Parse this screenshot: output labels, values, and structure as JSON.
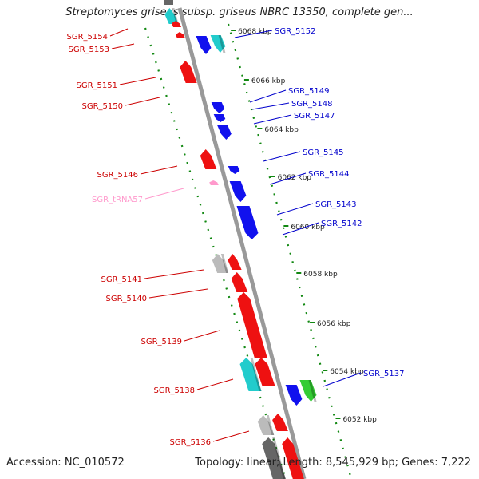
{
  "header": {
    "title": "Streptomyces griseus subsp. griseus NBRC 13350, complete gen..."
  },
  "footer": {
    "accession": "Accession: NC_010572",
    "topology": "Topology: linear; Length: 8,545,929 bp; Genes: 7,222"
  },
  "colors": {
    "forward_gene": "#ee1111",
    "reverse_gene": "#1111ee",
    "pseudo_teal": "#22cccc",
    "grey_gene": "#bbbbbb",
    "dark_gene": "#666666",
    "green_gene": "#33cc33",
    "trna": "#ff99cc",
    "scale": "#118811",
    "left_label": "#cc0000",
    "right_label": "#0000cc"
  },
  "scale_labels": [
    "6068 kbp",
    "6066 kbp",
    "6064 kbp",
    "6062 kbp",
    "6060 kbp",
    "6058 kbp",
    "6056 kbp",
    "6054 kbp",
    "6052 kbp"
  ],
  "left_labels": [
    {
      "text": "SGR_5154",
      "kind": "gene"
    },
    {
      "text": "SGR_5153",
      "kind": "gene"
    },
    {
      "text": "SGR_5151",
      "kind": "gene"
    },
    {
      "text": "SGR_5150",
      "kind": "gene"
    },
    {
      "text": "SGR_5146",
      "kind": "gene"
    },
    {
      "text": "SGR_tRNA57",
      "kind": "trna"
    },
    {
      "text": "SGR_5141",
      "kind": "gene"
    },
    {
      "text": "SGR_5140",
      "kind": "gene"
    },
    {
      "text": "SGR_5139",
      "kind": "gene"
    },
    {
      "text": "SGR_5138",
      "kind": "gene"
    },
    {
      "text": "SGR_5136",
      "kind": "gene"
    }
  ],
  "right_labels": [
    {
      "text": "SGR_5152"
    },
    {
      "text": "SGR_5149"
    },
    {
      "text": "SGR_5148"
    },
    {
      "text": "SGR_5147"
    },
    {
      "text": "SGR_5145"
    },
    {
      "text": "SGR_5144"
    },
    {
      "text": "SGR_5143"
    },
    {
      "text": "SGR_5142"
    },
    {
      "text": "SGR_5137"
    }
  ],
  "genes": [
    {
      "color": "teal",
      "strand": "fwd"
    },
    {
      "color": "red",
      "strand": "fwd"
    },
    {
      "color": "red",
      "strand": "fwd"
    },
    {
      "color": "blue",
      "strand": "rev"
    },
    {
      "color": "teal",
      "strand": "rev"
    },
    {
      "color": "red",
      "strand": "fwd"
    },
    {
      "color": "blue",
      "strand": "rev"
    },
    {
      "color": "blue",
      "strand": "rev"
    },
    {
      "color": "blue",
      "strand": "rev"
    },
    {
      "color": "red",
      "strand": "fwd"
    },
    {
      "color": "blue",
      "strand": "rev"
    },
    {
      "color": "pink",
      "strand": "fwd"
    },
    {
      "color": "blue",
      "strand": "rev"
    },
    {
      "color": "blue",
      "strand": "rev"
    },
    {
      "color": "grey",
      "strand": "fwd"
    },
    {
      "color": "red",
      "strand": "fwd"
    },
    {
      "color": "red",
      "strand": "fwd"
    },
    {
      "color": "red",
      "strand": "fwd"
    },
    {
      "color": "teal",
      "strand": "fwd"
    },
    {
      "color": "red",
      "strand": "fwd"
    },
    {
      "color": "blue",
      "strand": "rev"
    },
    {
      "color": "green",
      "strand": "rev"
    },
    {
      "color": "grey",
      "strand": "fwd"
    },
    {
      "color": "red",
      "strand": "fwd"
    },
    {
      "color": "dark",
      "strand": "fwd"
    },
    {
      "color": "red",
      "strand": "fwd"
    }
  ]
}
